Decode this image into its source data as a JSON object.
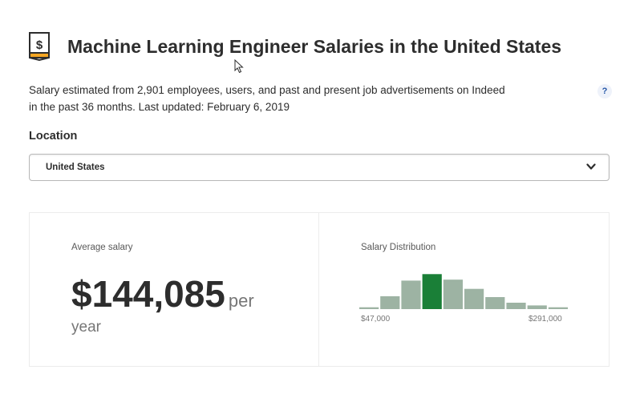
{
  "header": {
    "title": "Machine Learning Engineer Salaries in the United States",
    "icon": "salary-document-icon",
    "description_line1": "Salary estimated from 2,901 employees, users, and past and present job advertisements on Indeed",
    "description_line2": "in the past 36 months. Last updated: February 6, 2019",
    "help_label": "?"
  },
  "location": {
    "label": "Location",
    "selected": "United States"
  },
  "average": {
    "label": "Average salary",
    "value": "$144,085",
    "period_part1": "per",
    "period_part2": "year"
  },
  "distribution": {
    "label": "Salary Distribution",
    "min_label": "$47,000",
    "max_label": "$291,000",
    "colors": {
      "bar": "#9db3a3",
      "highlight": "#1a7f37"
    },
    "chart_data": {
      "type": "bar",
      "categories": [
        "1",
        "2",
        "3",
        "4",
        "5",
        "6",
        "7",
        "8",
        "9",
        "10"
      ],
      "values": [
        2,
        14,
        31,
        38,
        32,
        22,
        13,
        7,
        4,
        2
      ],
      "highlight_index": 3,
      "xlabel": "",
      "ylabel": "",
      "ylim": [
        0,
        40
      ],
      "grid": false
    }
  }
}
